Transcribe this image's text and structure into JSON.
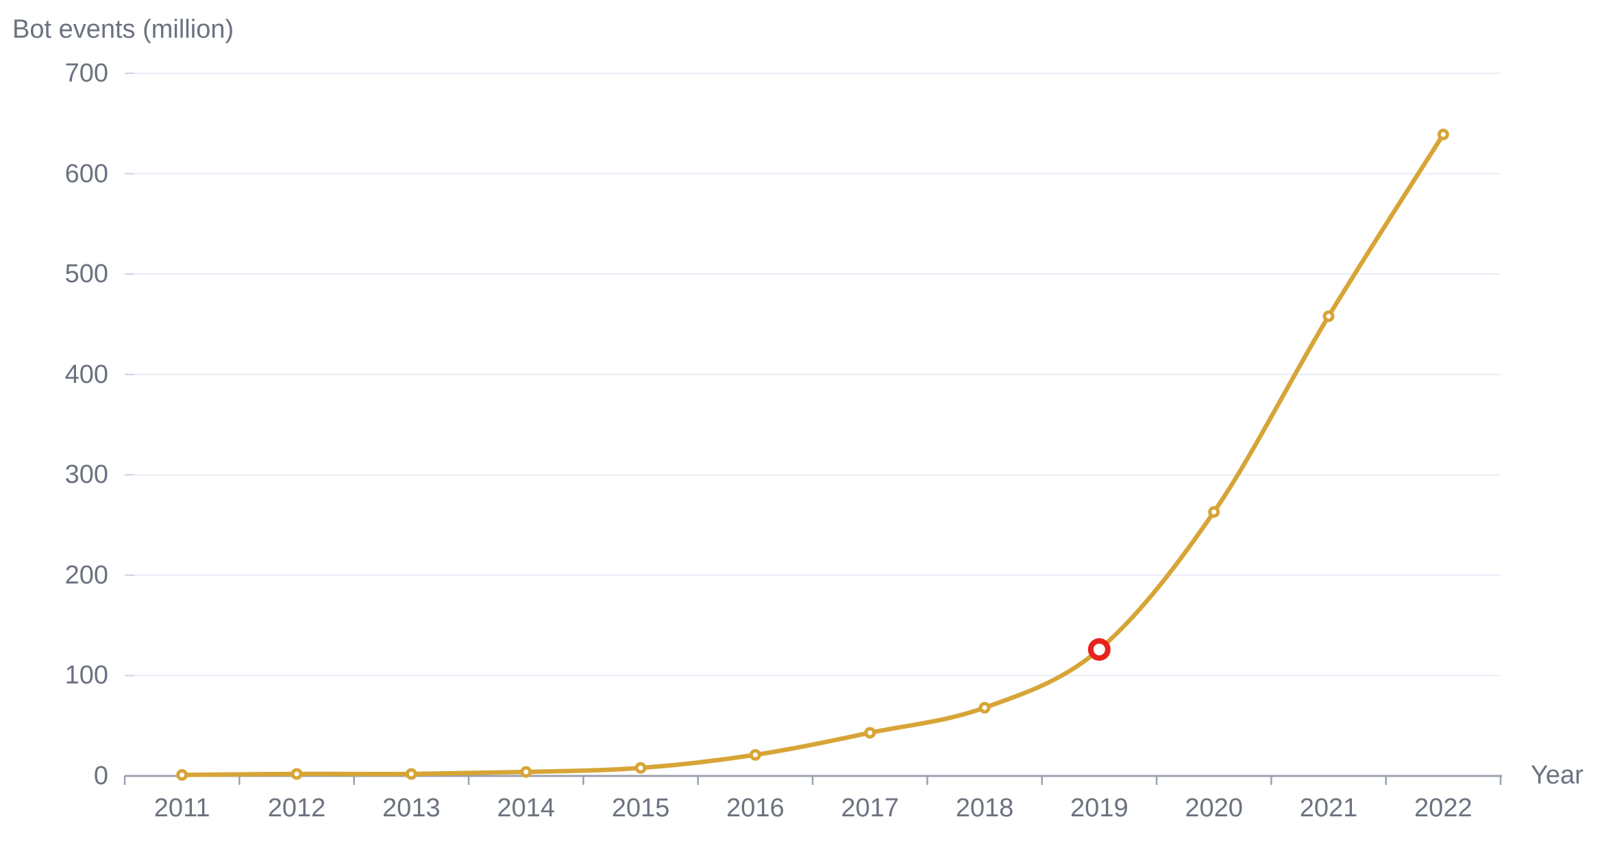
{
  "chart": {
    "y_axis_title": "Bot events (million)",
    "x_axis_title": "Year"
  },
  "chart_data": {
    "type": "line",
    "title": "",
    "xlabel": "Year",
    "ylabel": "Bot events (million)",
    "x": [
      2011,
      2012,
      2013,
      2014,
      2015,
      2016,
      2017,
      2018,
      2019,
      2020,
      2021,
      2022
    ],
    "series": [
      {
        "name": "Bot events (million)",
        "values": [
          1,
          2,
          2,
          4,
          8,
          21,
          43,
          68,
          126,
          263,
          458,
          639
        ]
      }
    ],
    "ylim": [
      0,
      700
    ],
    "y_ticks": [
      0,
      100,
      200,
      300,
      400,
      500,
      600,
      700
    ],
    "grid": "horizontal-only",
    "legend": "none",
    "marker_style": "open-circle",
    "highlight": {
      "x": 2019,
      "value": 126
    }
  },
  "colors": {
    "line": "#D7A537",
    "marker_fill": "#FFFFFF",
    "highlight_ring": "#E5251D",
    "gridline": "#E9EDF6",
    "grid_stub": "#CDD3E0",
    "axis": "#9BA2AE",
    "text": "#6B7280",
    "background": "#FFFFFF"
  }
}
